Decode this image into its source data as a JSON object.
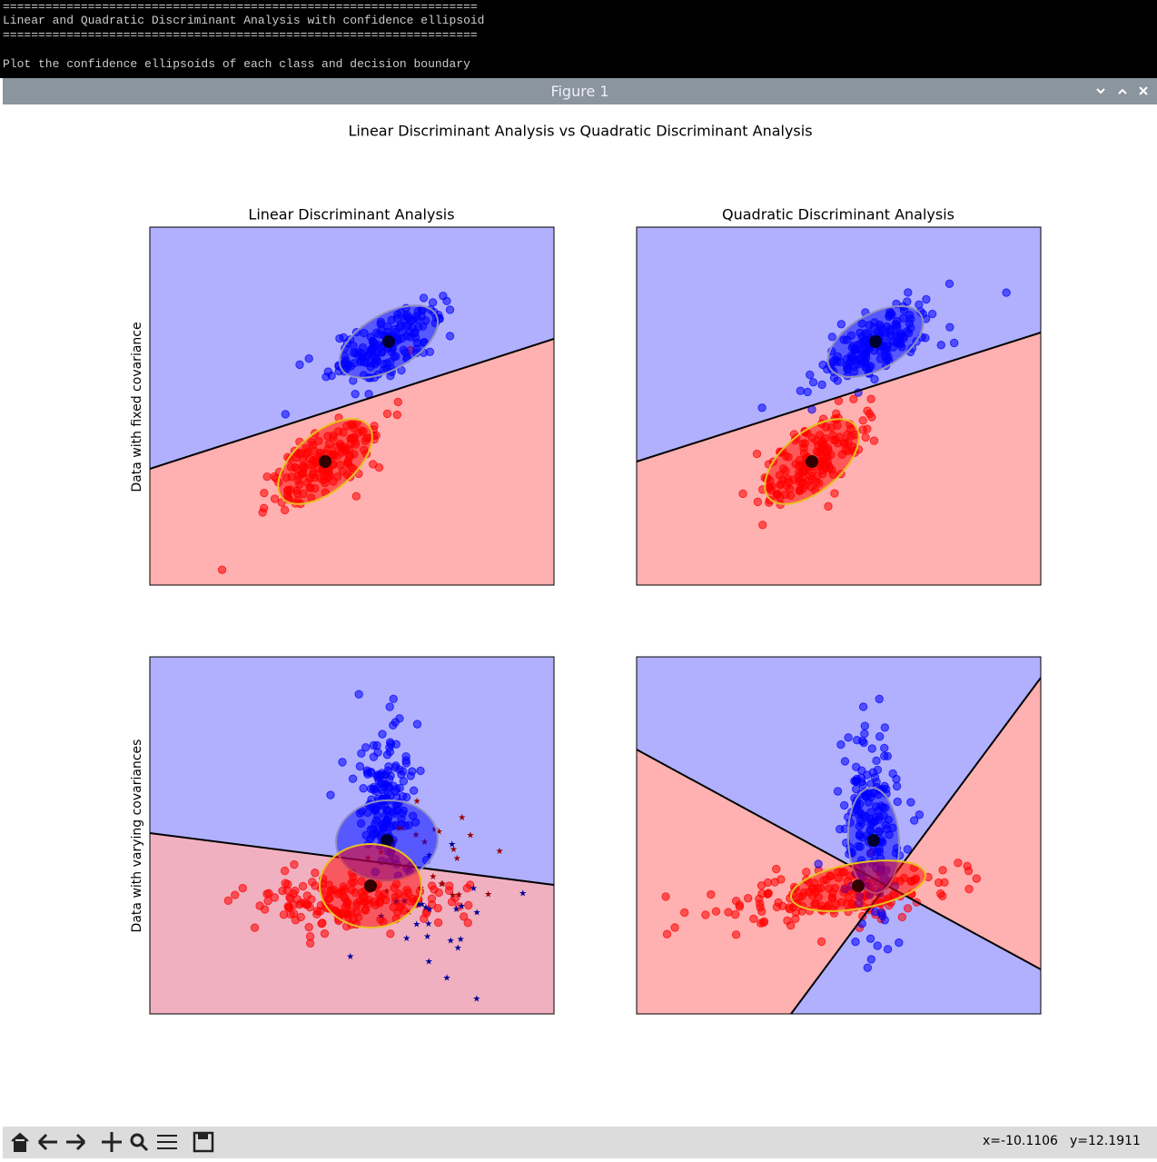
{
  "terminal": {
    "lines": [
      "===================================================================",
      "Linear and Quadratic Discriminant Analysis with confidence ellipsoid",
      "===================================================================",
      "Plot the confidence ellipsoids of each class and decision boundary"
    ]
  },
  "window": {
    "title": "Figure 1"
  },
  "figure": {
    "suptitle": "Linear Discriminant Analysis vs Quadratic Discriminant Analysis",
    "columns": [
      "Linear Discriminant Analysis",
      "Quadratic Discriminant Analysis"
    ],
    "rows": [
      "Data with fixed covariance",
      "Data with varying covariances"
    ]
  },
  "statusbar": {
    "x": "x=-10.1106",
    "y": "y=12.1911"
  }
}
